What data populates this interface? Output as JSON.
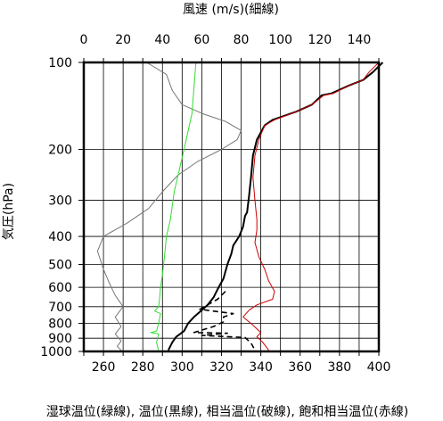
{
  "chart_data": {
    "type": "line",
    "title": "",
    "top_axis": {
      "label": "風速 (m/s)(細線)",
      "ticks": [
        0,
        20,
        40,
        60,
        80,
        100,
        120,
        140
      ],
      "range": [
        0,
        150
      ]
    },
    "bottom_axis": {
      "label": "湿球温位(緑線), 温位(黒線), 相当温位(破線), 飽和相当温位(赤線)",
      "ticks": [
        260,
        280,
        300,
        320,
        340,
        360,
        380,
        400
      ],
      "range": [
        250,
        400
      ]
    },
    "left_axis": {
      "label": "気圧(hPa)",
      "ticks": [
        100,
        200,
        300,
        400,
        500,
        600,
        700,
        800,
        900,
        1000
      ],
      "range": [
        100,
        1000
      ],
      "scale": "log"
    },
    "grid": true,
    "series": [
      {
        "id": "wind",
        "axis": "top",
        "color": "#777777",
        "dash": false,
        "points": [
          [
            32,
            100
          ],
          [
            42,
            110
          ],
          [
            45,
            125
          ],
          [
            50,
            140
          ],
          [
            60,
            150
          ],
          [
            72,
            160
          ],
          [
            80,
            172
          ],
          [
            78,
            185
          ],
          [
            70,
            200
          ],
          [
            58,
            220
          ],
          [
            48,
            245
          ],
          [
            40,
            280
          ],
          [
            33,
            320
          ],
          [
            22,
            360
          ],
          [
            10,
            400
          ],
          [
            7,
            450
          ],
          [
            10,
            520
          ],
          [
            13,
            580
          ],
          [
            16,
            640
          ],
          [
            20,
            700
          ],
          [
            16,
            760
          ],
          [
            19,
            820
          ],
          [
            16,
            870
          ],
          [
            19,
            920
          ],
          [
            17,
            960
          ],
          [
            19,
            990
          ]
        ]
      },
      {
        "id": "wet_bulb_theta",
        "axis": "bottom",
        "color": "#33dd33",
        "dash": false,
        "points": [
          [
            307,
            100
          ],
          [
            305,
            150
          ],
          [
            301,
            200
          ],
          [
            296,
            280
          ],
          [
            294,
            350
          ],
          [
            292,
            400
          ],
          [
            291,
            470
          ],
          [
            290,
            540
          ],
          [
            289,
            600
          ],
          [
            288.5,
            660
          ],
          [
            288,
            700
          ],
          [
            286,
            725
          ],
          [
            289,
            740
          ],
          [
            288,
            800
          ],
          [
            287,
            850
          ],
          [
            284,
            860
          ],
          [
            288,
            870
          ],
          [
            287,
            930
          ],
          [
            288,
            990
          ]
        ]
      },
      {
        "id": "theta",
        "axis": "bottom",
        "color": "#000000",
        "dash": false,
        "points": [
          [
            402,
            100
          ],
          [
            397,
            108
          ],
          [
            392,
            115
          ],
          [
            385,
            120
          ],
          [
            376,
            128
          ],
          [
            371,
            130
          ],
          [
            366,
            140
          ],
          [
            358,
            148
          ],
          [
            346,
            158
          ],
          [
            342,
            165
          ],
          [
            338,
            185
          ],
          [
            336,
            210
          ],
          [
            335,
            250
          ],
          [
            334,
            290
          ],
          [
            333,
            330
          ],
          [
            332,
            340
          ],
          [
            331,
            370
          ],
          [
            329,
            400
          ],
          [
            326,
            430
          ],
          [
            325,
            460
          ],
          [
            323,
            500
          ],
          [
            321,
            560
          ],
          [
            318,
            610
          ],
          [
            316,
            650
          ],
          [
            313,
            690
          ],
          [
            310,
            720
          ],
          [
            306,
            760
          ],
          [
            303,
            800
          ],
          [
            301,
            850
          ],
          [
            299,
            870
          ],
          [
            297,
            890
          ],
          [
            295,
            930
          ],
          [
            293,
            990
          ]
        ]
      },
      {
        "id": "theta_e",
        "axis": "bottom",
        "color": "#000000",
        "dash": true,
        "points": [
          [
            322,
            620
          ],
          [
            318,
            660
          ],
          [
            313,
            690
          ],
          [
            309,
            715
          ],
          [
            326,
            740
          ],
          [
            321,
            760
          ],
          [
            321,
            790
          ],
          [
            316,
            820
          ],
          [
            306,
            860
          ],
          [
            323,
            865
          ],
          [
            310,
            880
          ],
          [
            332,
            895
          ],
          [
            335,
            935
          ],
          [
            337,
            990
          ]
        ]
      },
      {
        "id": "theta_es",
        "axis": "bottom",
        "color": "#cc0000",
        "dash": false,
        "points": [
          [
            400,
            100
          ],
          [
            395,
            108
          ],
          [
            392,
            115
          ],
          [
            385,
            120
          ],
          [
            377,
            128
          ],
          [
            372,
            130
          ],
          [
            366,
            140
          ],
          [
            358,
            148
          ],
          [
            347,
            158
          ],
          [
            342,
            165
          ],
          [
            339,
            185
          ],
          [
            337,
            210
          ],
          [
            336,
            250
          ],
          [
            337,
            300
          ],
          [
            338,
            350
          ],
          [
            338,
            380
          ],
          [
            337,
            420
          ],
          [
            339,
            470
          ],
          [
            342,
            520
          ],
          [
            344,
            570
          ],
          [
            347,
            620
          ],
          [
            346,
            660
          ],
          [
            338,
            690
          ],
          [
            334,
            720
          ],
          [
            331,
            760
          ],
          [
            335,
            800
          ],
          [
            340,
            860
          ],
          [
            338,
            890
          ],
          [
            341,
            930
          ],
          [
            344,
            990
          ]
        ]
      }
    ]
  }
}
